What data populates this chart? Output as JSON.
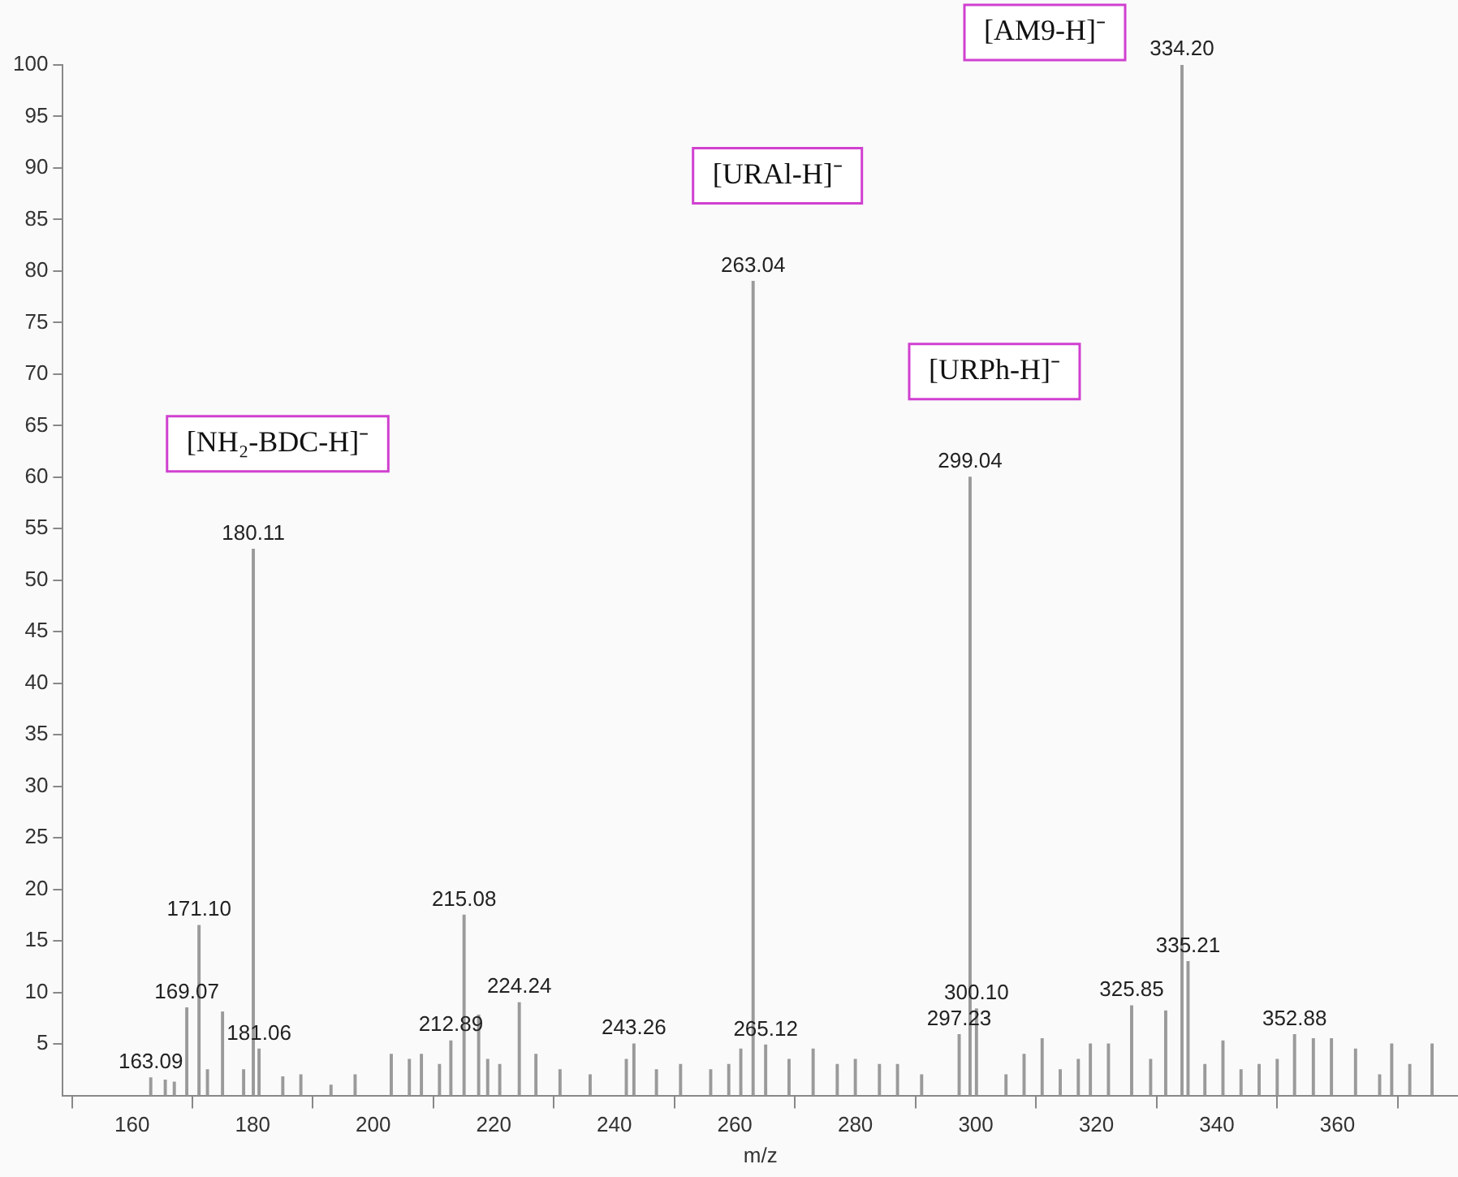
{
  "chart_data": {
    "type": "bar",
    "xlabel": "m/z",
    "x": [
      163.09,
      165.5,
      167,
      169.07,
      171.1,
      172.5,
      175,
      178.5,
      180.11,
      181.06,
      185,
      188,
      193,
      197,
      203,
      206,
      208,
      211,
      212.89,
      215.08,
      217.5,
      219,
      221,
      224.24,
      227,
      231,
      236,
      242,
      243.26,
      247,
      251,
      256,
      259,
      261,
      263.04,
      265.12,
      269,
      273,
      277,
      280,
      284,
      287,
      291,
      297.23,
      299.04,
      300.1,
      305,
      308,
      311,
      314,
      317,
      319,
      322,
      325.85,
      329,
      331.5,
      334.2,
      335.21,
      338,
      341,
      344,
      347,
      350,
      352.88,
      356,
      359,
      363,
      367,
      369,
      372,
      375.7
    ],
    "series": [
      {
        "color": "#9a9a9a",
        "values": [
          1.7,
          1.5,
          1.3,
          8.5,
          16.5,
          2.5,
          8.1,
          2.5,
          53,
          4.5,
          1.8,
          2,
          1,
          2,
          4,
          3.5,
          4,
          3,
          5.3,
          17.5,
          7.8,
          3.5,
          3,
          9,
          4,
          2.5,
          2,
          3.5,
          5,
          2.5,
          3,
          2.5,
          3,
          4.5,
          79,
          4.9,
          3.5,
          4.5,
          3,
          3.5,
          3,
          3,
          2,
          5.9,
          60,
          8.4,
          2,
          4,
          5.5,
          2.5,
          3.5,
          5,
          5,
          8.7,
          3.5,
          8.2,
          100,
          13,
          3,
          5.3,
          2.5,
          3,
          3.5,
          5.9,
          5.5,
          5.5,
          4.5,
          2,
          5,
          3,
          5
        ]
      }
    ],
    "xlim": [
      148.5,
      380
    ],
    "xticks": [
      160,
      180,
      200,
      220,
      240,
      260,
      280,
      300,
      320,
      340,
      360
    ],
    "ylim": [
      0,
      100
    ],
    "yticks": [
      5,
      10,
      15,
      20,
      25,
      30,
      35,
      40,
      45,
      50,
      55,
      60,
      65,
      70,
      75,
      80,
      85,
      90,
      95,
      100
    ],
    "grid": false,
    "legend": false,
    "annotations": [
      "[NH₂-BDC-H]⁻",
      "[URAl-H]⁻",
      "[URPh-H]⁻",
      "[AM9-H]⁻",
      {
        "text": "163.09",
        "x": 163.09,
        "y": 1.7
      },
      {
        "text": "169.07",
        "x": 169.07,
        "y": 8.5
      },
      {
        "text": "171.10",
        "x": 171.1,
        "y": 16.5
      },
      {
        "text": "180.11",
        "x": 180.11,
        "y": 53
      },
      {
        "text": "181.06",
        "x": 181.06,
        "y": 4.5
      },
      {
        "text": "212.89",
        "x": 212.89,
        "y": 5.3
      },
      {
        "text": "215.08",
        "x": 215.08,
        "y": 17.5
      },
      {
        "text": "224.24",
        "x": 224.24,
        "y": 9
      },
      {
        "text": "243.26",
        "x": 243.26,
        "y": 5
      },
      {
        "text": "263.04",
        "x": 263.04,
        "y": 79
      },
      {
        "text": "265.12",
        "x": 265.12,
        "y": 4.9
      },
      {
        "text": "297.23",
        "x": 297.23,
        "y": 5.9
      },
      {
        "text": "299.04",
        "x": 299.04,
        "y": 60
      },
      {
        "text": "300.10",
        "x": 300.1,
        "y": 8.4
      },
      {
        "text": "325.85",
        "x": 325.85,
        "y": 8.7
      },
      {
        "text": "334.20",
        "x": 334.2,
        "y": 100
      },
      {
        "text": "335.21",
        "x": 335.21,
        "y": 13
      },
      {
        "text": "352.88",
        "x": 352.88,
        "y": 5.9
      }
    ]
  }
}
